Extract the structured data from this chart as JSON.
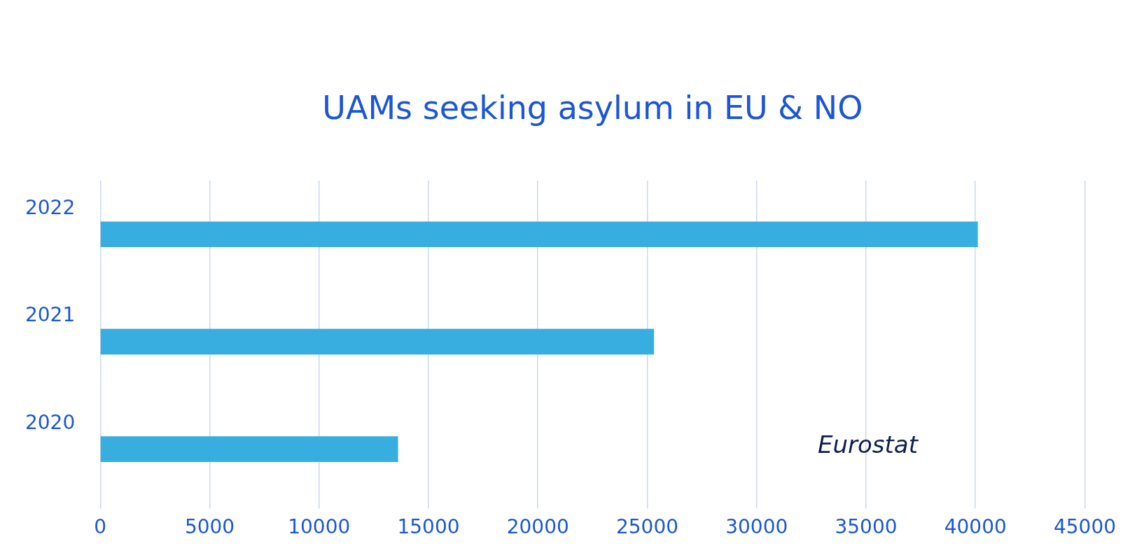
{
  "chart_data": {
    "type": "bar",
    "orientation": "horizontal",
    "title": "UAMs seeking asylum in EU & NO",
    "categories": [
      "2022",
      "2021",
      "2020"
    ],
    "values": [
      40100,
      25300,
      13600
    ],
    "color": "#38addf",
    "xlim": [
      0,
      45000
    ],
    "xticks": [
      0,
      5000,
      10000,
      15000,
      20000,
      25000,
      30000,
      35000,
      40000,
      45000
    ],
    "grid": "x",
    "legend": false,
    "annotations": [
      "Eurostat"
    ]
  }
}
